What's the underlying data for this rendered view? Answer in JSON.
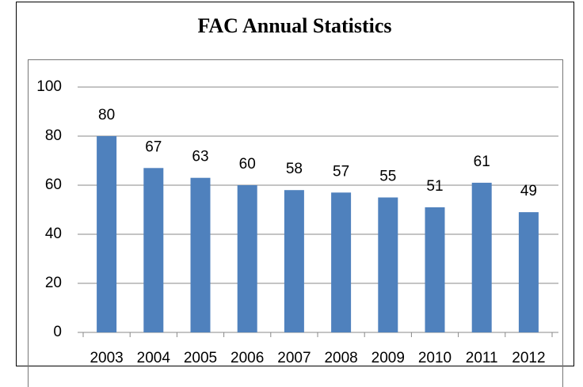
{
  "chart_data": {
    "type": "bar",
    "title": "FAC Annual Statistics",
    "categories": [
      "2003",
      "2004",
      "2005",
      "2006",
      "2007",
      "2008",
      "2009",
      "2010",
      "2011",
      "2012"
    ],
    "values": [
      80,
      67,
      63,
      60,
      58,
      57,
      55,
      51,
      61,
      49
    ],
    "color": "#4f81bd",
    "ylim": [
      0,
      100
    ],
    "yticks": [
      0,
      20,
      40,
      60,
      80,
      100
    ],
    "grid": true
  }
}
